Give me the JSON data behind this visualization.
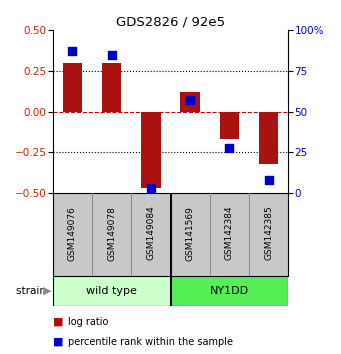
{
  "title": "GDS2826 / 92e5",
  "samples": [
    "GSM149076",
    "GSM149078",
    "GSM149084",
    "GSM141569",
    "GSM142384",
    "GSM142385"
  ],
  "log_ratio": [
    0.3,
    0.3,
    -0.47,
    0.12,
    -0.17,
    -0.32
  ],
  "percentile_rank": [
    87,
    85,
    3,
    57,
    28,
    8
  ],
  "groups": [
    {
      "label": "wild type",
      "start": 0,
      "end": 3,
      "color_light": "#ccffcc",
      "color_dark": "#55ee55"
    },
    {
      "label": "NY1DD",
      "start": 3,
      "end": 6,
      "color_light": "#44ee44",
      "color_dark": "#44ee44"
    }
  ],
  "group_row_label": "strain",
  "ylim_left": [
    -0.5,
    0.5
  ],
  "ylim_right": [
    0,
    100
  ],
  "yticks_left": [
    -0.5,
    -0.25,
    0,
    0.25,
    0.5
  ],
  "yticks_right": [
    0,
    25,
    50,
    75,
    100
  ],
  "bar_color": "#aa1111",
  "dot_color": "#0000cc",
  "bar_width": 0.5,
  "dot_size": 40,
  "background_color": "#ffffff"
}
